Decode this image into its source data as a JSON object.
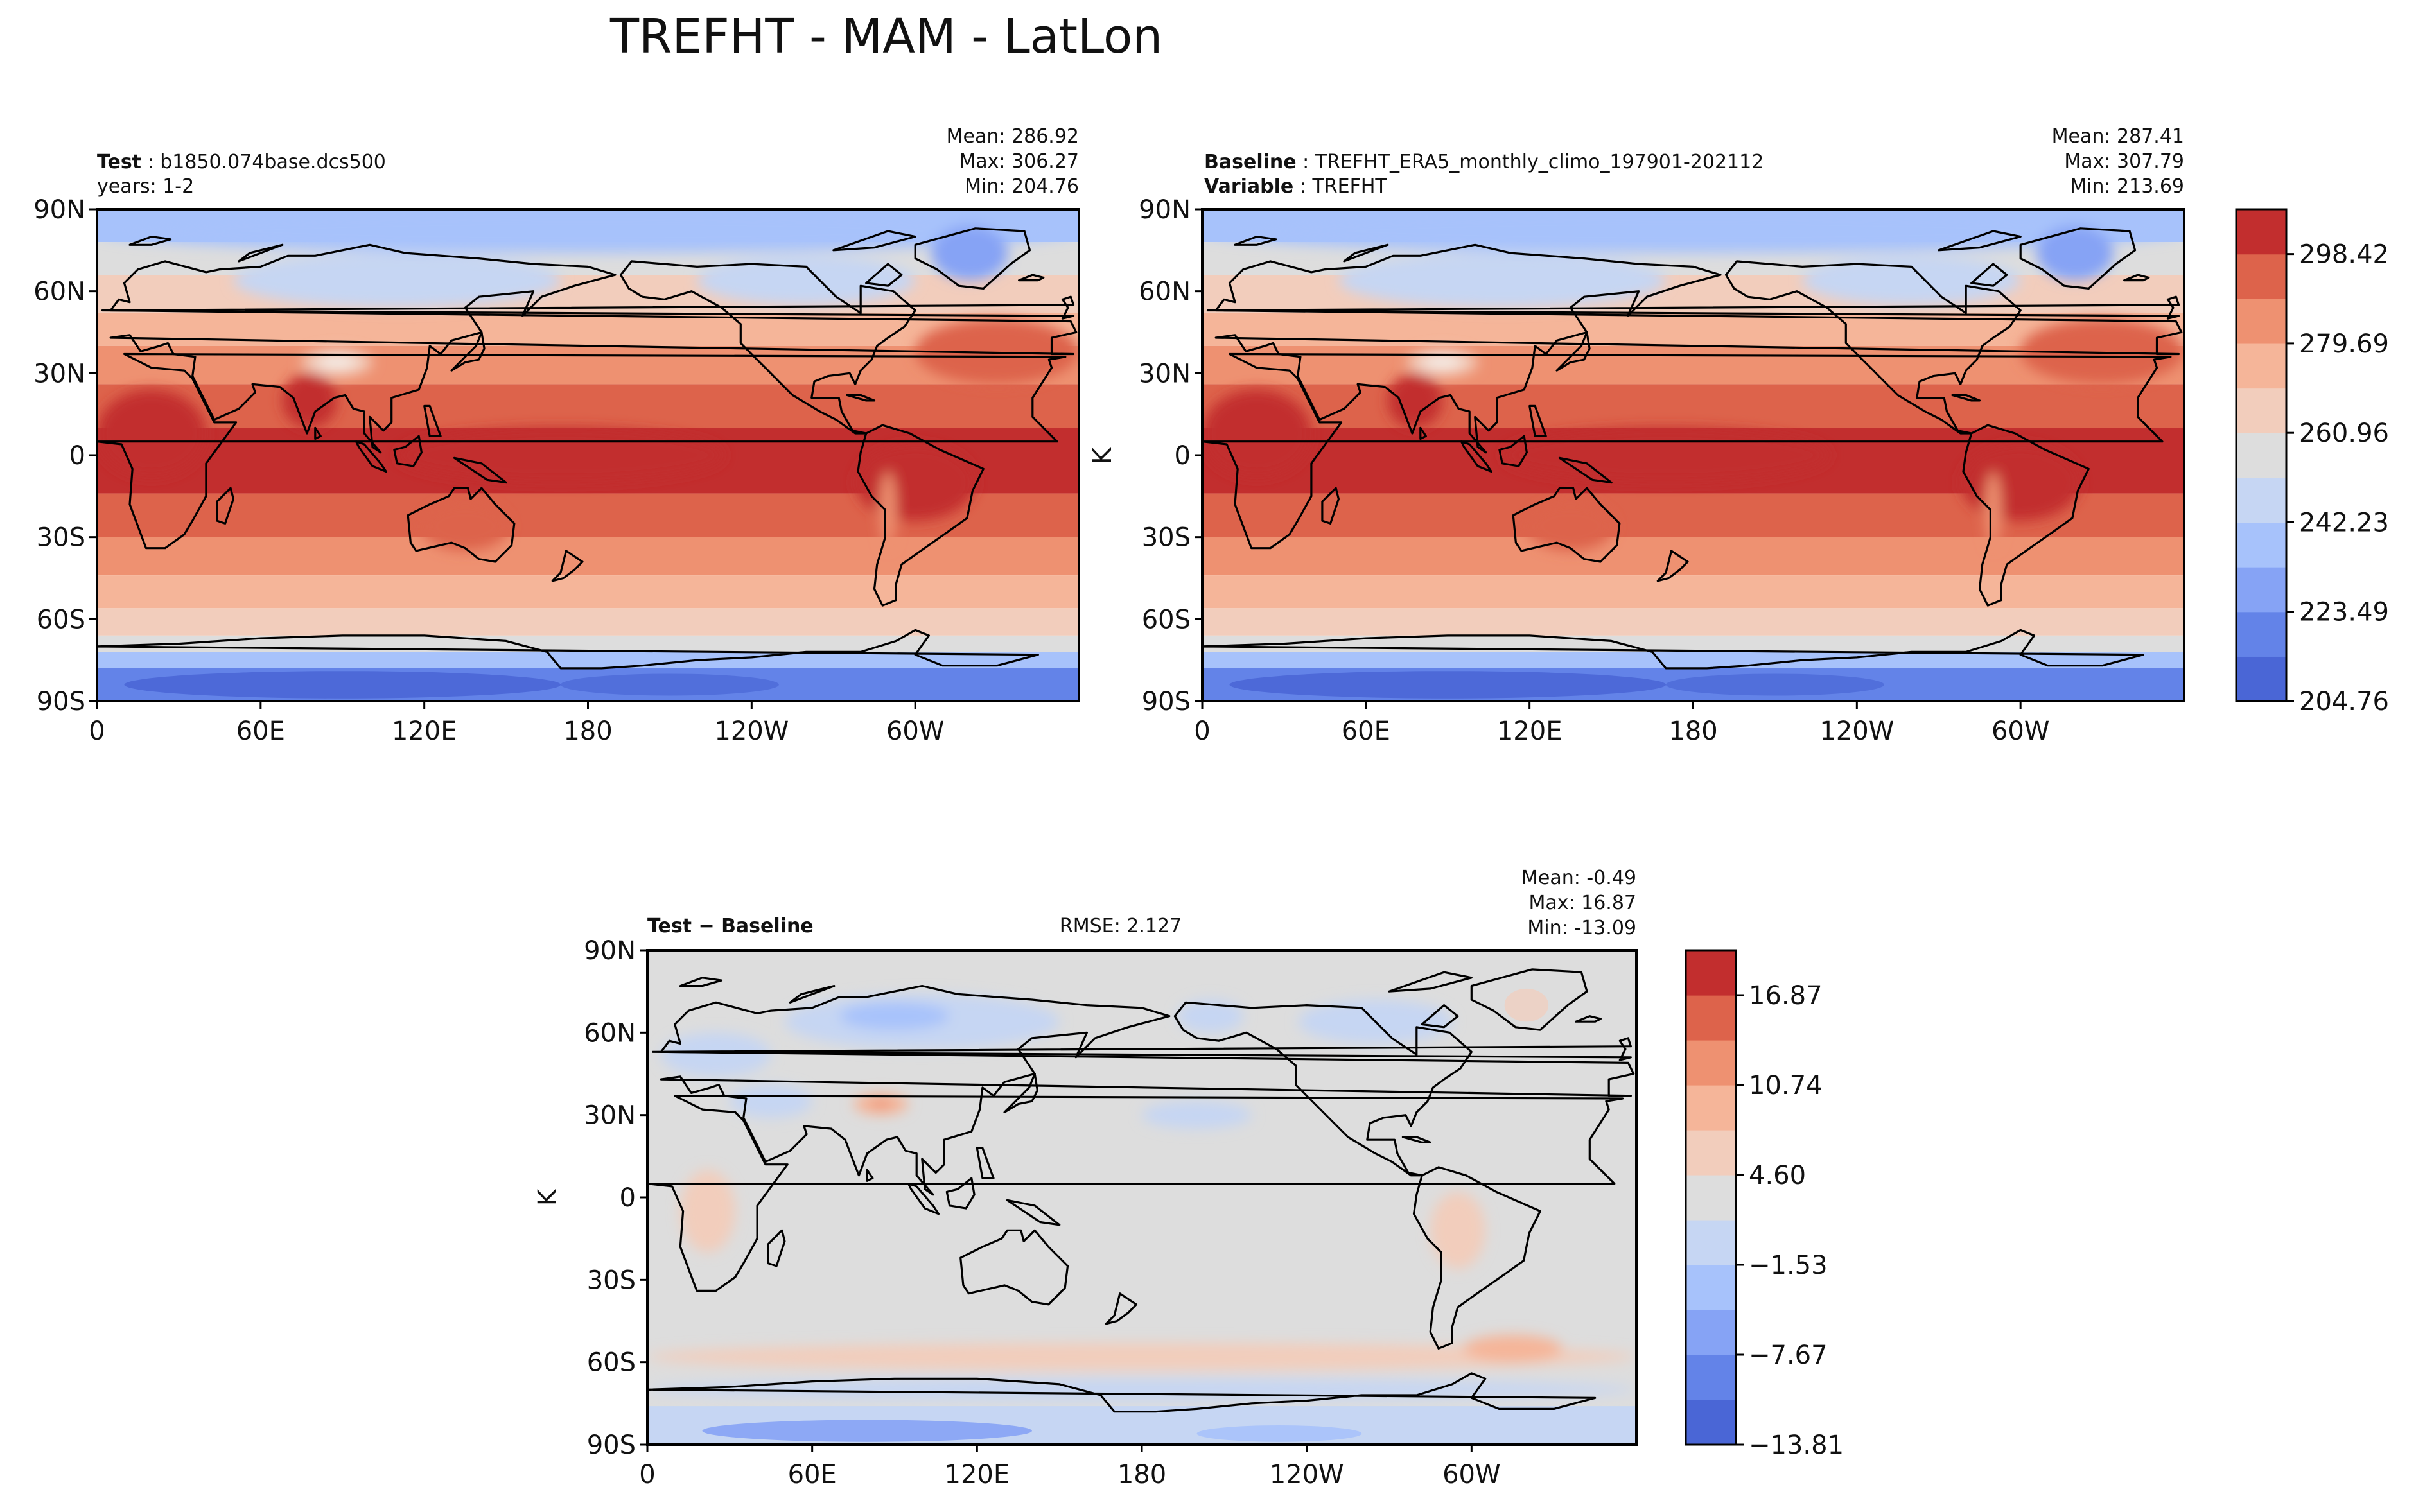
{
  "figure": {
    "title": "TREFHT - MAM - LatLon",
    "ylabel": "K",
    "lat_ticks": [
      "90N",
      "60N",
      "30N",
      "0",
      "30S",
      "60S",
      "90S"
    ],
    "lon_ticks": [
      "0",
      "60E",
      "120E",
      "180",
      "120W",
      "60W"
    ]
  },
  "panels": {
    "test": {
      "label_bold": "Test",
      "label_text": "b1850.074base.dcs500",
      "line2": "years: 1-2",
      "mean": "Mean: 286.92",
      "max": "Max: 306.27",
      "min": "Min: 204.76"
    },
    "baseline": {
      "label_bold": "Baseline",
      "label_text": "TREFHT_ERA5_monthly_climo_197901-202112",
      "line2_bold": "Variable",
      "line2_text": "TREFHT",
      "mean": "Mean: 287.41",
      "max": "Max: 307.79",
      "min": "Min: 213.69"
    },
    "diff": {
      "label_bold_a": "Test",
      "label_sep": " − ",
      "label_bold_b": "Baseline",
      "rmse": "RMSE: 2.127",
      "mean": "Mean: -0.49",
      "max": "Max: 16.87",
      "min": "Min: -13.09"
    }
  },
  "colorbars": {
    "main": {
      "tick_labels": [
        "298.42",
        "279.69",
        "260.96",
        "242.23",
        "223.49",
        "204.76"
      ],
      "colors": [
        "#4a66d6",
        "#6383e8",
        "#86a3f5",
        "#a7c2fb",
        "#c6d6f3",
        "#dddddd",
        "#f2cdbc",
        "#f5b599",
        "#ee9171",
        "#dd634b",
        "#c22e2e"
      ]
    },
    "diff": {
      "tick_labels": [
        "16.87",
        "10.74",
        "4.60",
        "−1.53",
        "−7.67",
        "−13.81"
      ],
      "colors": [
        "#4a66d6",
        "#6383e8",
        "#86a3f5",
        "#a7c2fb",
        "#c6d6f3",
        "#dddddd",
        "#f2cdbc",
        "#f5b599",
        "#ee9171",
        "#dd634b",
        "#c22e2e"
      ]
    }
  },
  "chart_data": [
    {
      "type": "heatmap",
      "title": "Test: b1850.074base.dcs500",
      "xlabel": "",
      "ylabel": "",
      "x_ticks": [
        "0",
        "60E",
        "120E",
        "180",
        "120W",
        "60W"
      ],
      "y_ticks": [
        "90N",
        "60N",
        "30N",
        "0",
        "30S",
        "60S",
        "90S"
      ],
      "colorbar_ticks": [
        204.76,
        223.49,
        242.23,
        260.96,
        279.69,
        298.42
      ],
      "stats": {
        "mean": 286.92,
        "max": 306.27,
        "min": 204.76
      }
    },
    {
      "type": "heatmap",
      "title": "Baseline: TREFHT_ERA5_monthly_climo_197901-202112",
      "xlabel": "",
      "ylabel": "K",
      "x_ticks": [
        "0",
        "60E",
        "120E",
        "180",
        "120W",
        "60W"
      ],
      "y_ticks": [
        "90N",
        "60N",
        "30N",
        "0",
        "30S",
        "60S",
        "90S"
      ],
      "colorbar_ticks": [
        204.76,
        223.49,
        242.23,
        260.96,
        279.69,
        298.42
      ],
      "stats": {
        "mean": 287.41,
        "max": 307.79,
        "min": 213.69
      }
    },
    {
      "type": "heatmap",
      "title": "Test − Baseline",
      "xlabel": "",
      "ylabel": "K",
      "x_ticks": [
        "0",
        "60E",
        "120E",
        "180",
        "120W",
        "60W"
      ],
      "y_ticks": [
        "90N",
        "60N",
        "30N",
        "0",
        "30S",
        "60S",
        "90S"
      ],
      "colorbar_ticks": [
        -13.81,
        -7.67,
        -1.53,
        4.6,
        10.74,
        16.87
      ],
      "stats": {
        "mean": -0.49,
        "max": 16.87,
        "min": -13.09,
        "rmse": 2.127
      }
    }
  ]
}
